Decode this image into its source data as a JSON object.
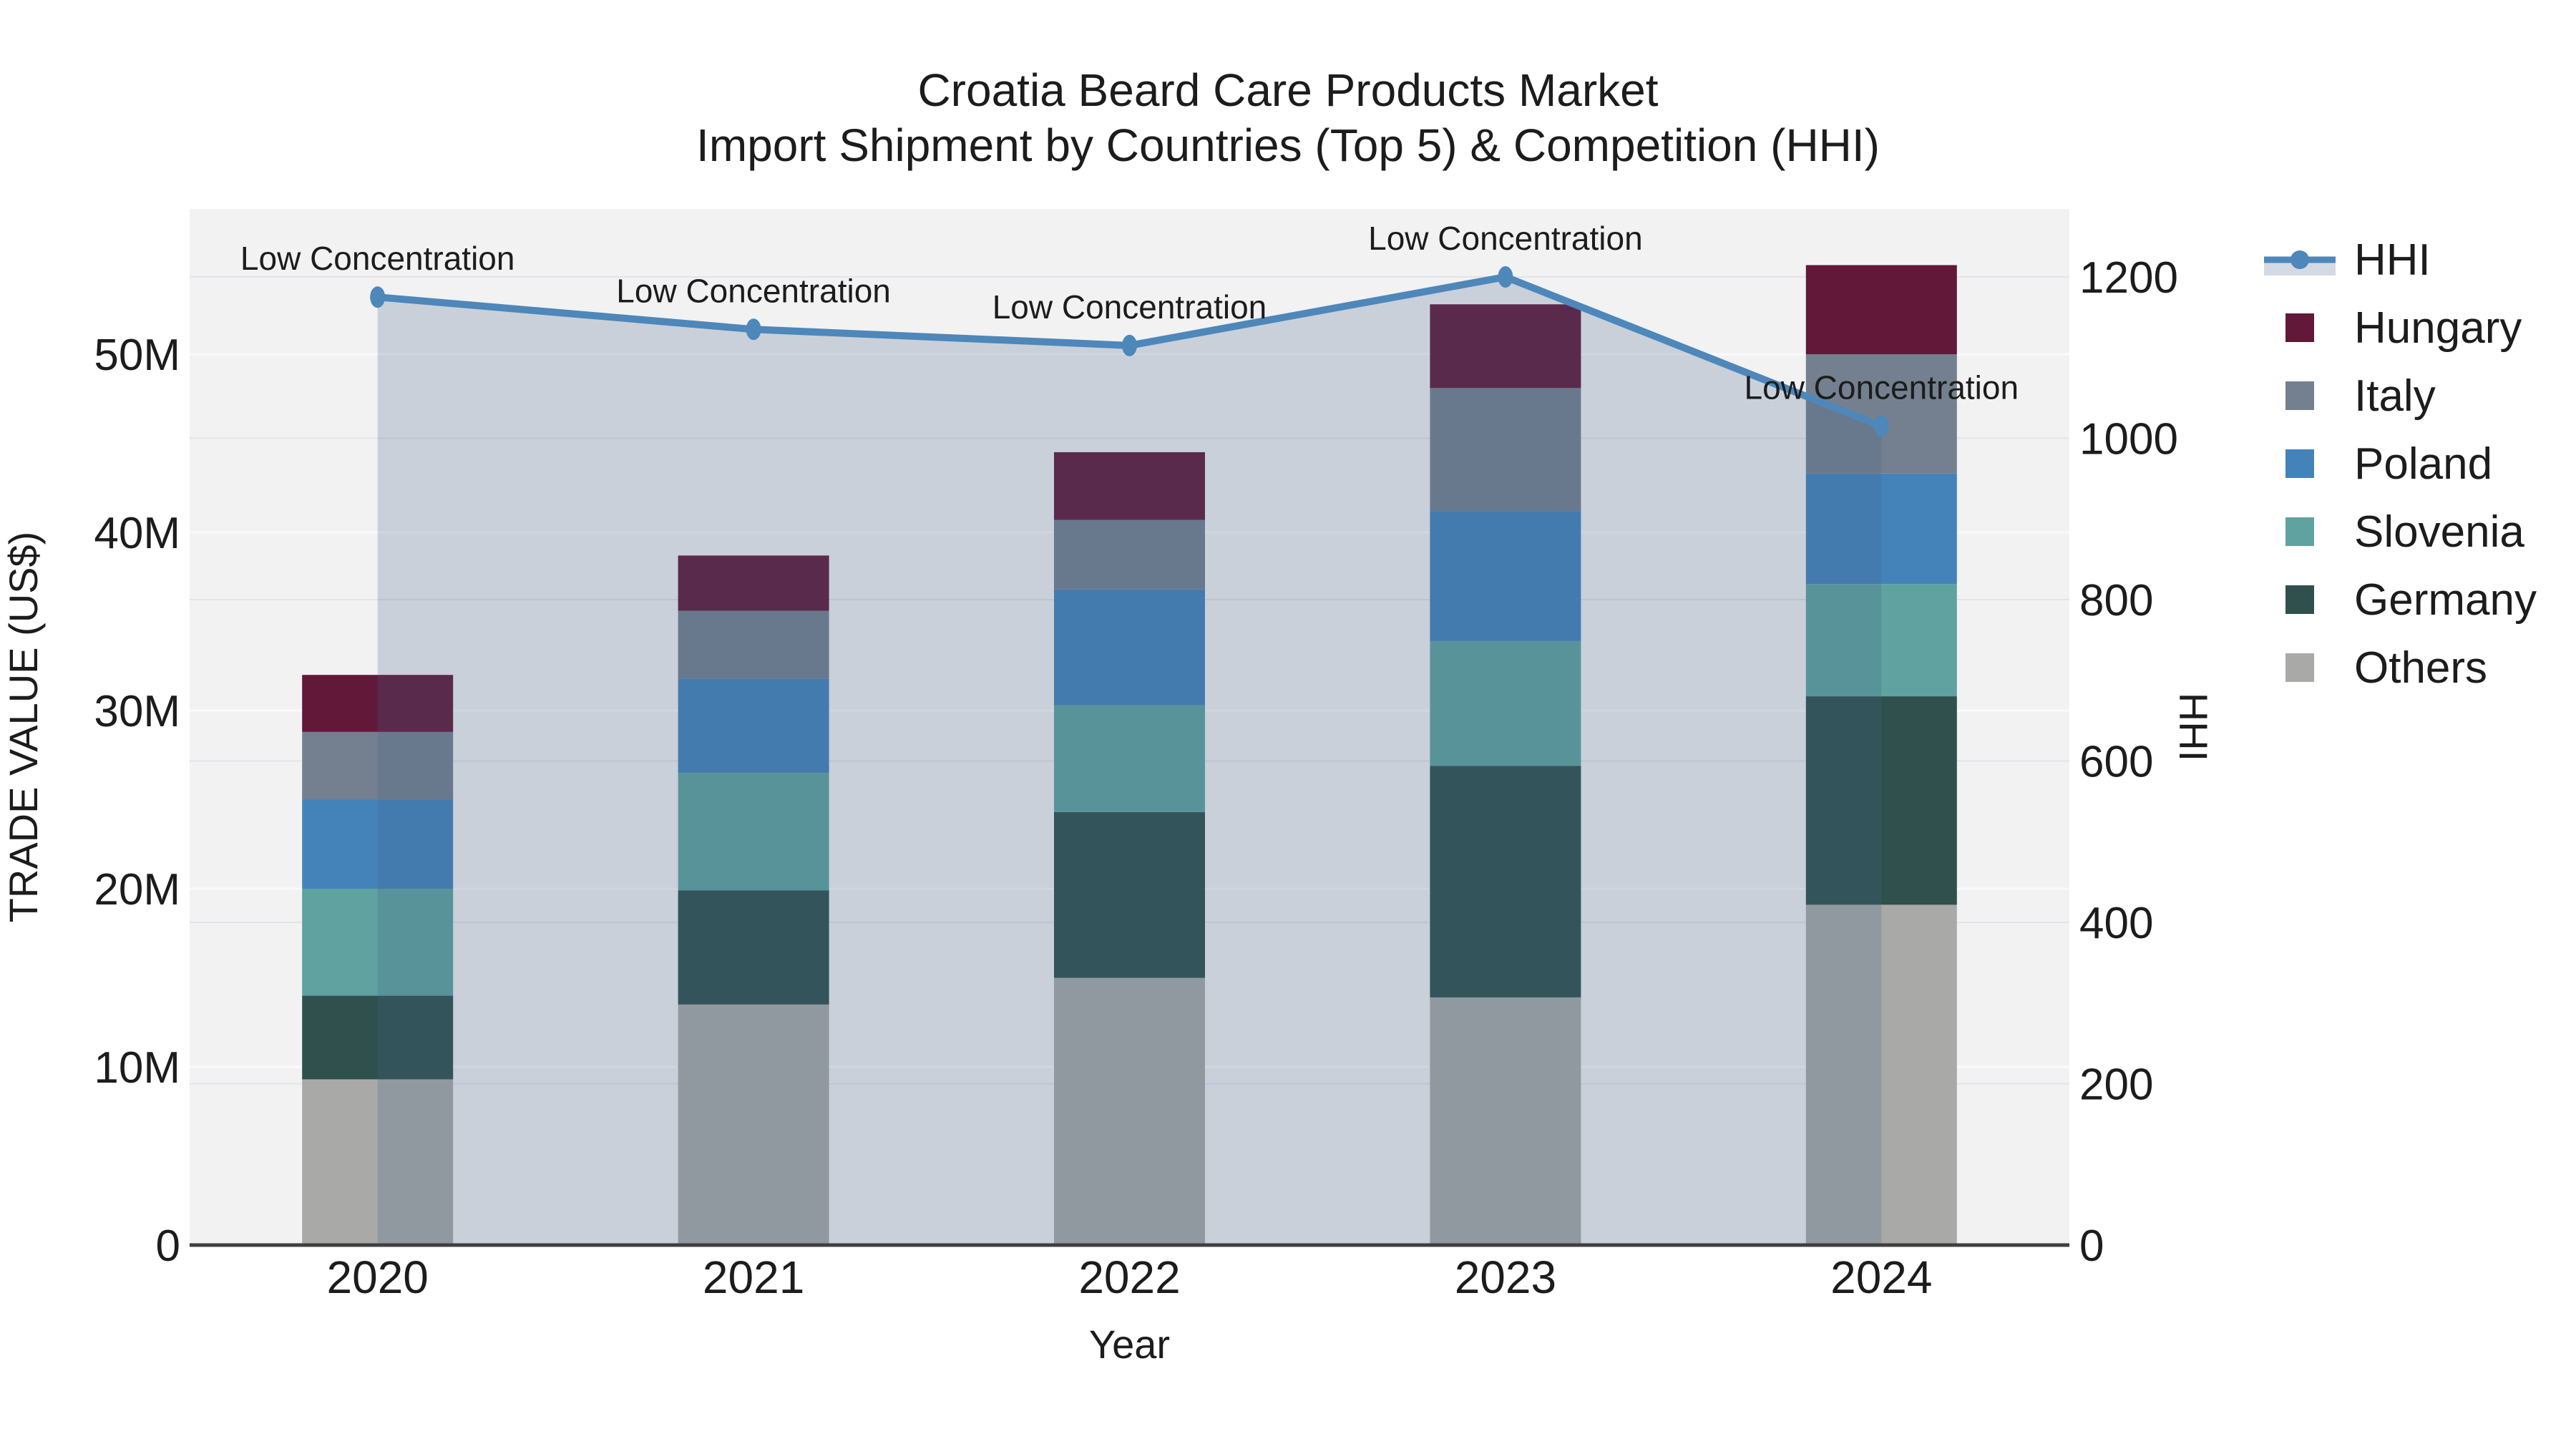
{
  "title": {
    "line1": "Croatia Beard Care Products Market",
    "line2": "Import Shipment by Countries (Top 5) & Competition (HHI)"
  },
  "colors": {
    "plot_background": "#f2f2f3",
    "grid_left": "#fafafc",
    "grid_right": "#e3e4e8",
    "axis_line": "#3f3f3f",
    "text": "#1c1c1c",
    "hhi_line": "#4e87b9",
    "hhi_area_fill": "rgba(70,100,140,0.24)",
    "hungary": "#611839",
    "italy": "#74808f",
    "poland": "#4483ba",
    "slovenia": "#5fa2a0",
    "germany": "#2f504d",
    "others": "#a9aaa8"
  },
  "legend": {
    "items": [
      {
        "label": "HHI",
        "type": "line",
        "color": "#4e87b9"
      },
      {
        "label": "Hungary",
        "type": "swatch",
        "color": "#611839"
      },
      {
        "label": "Italy",
        "type": "swatch",
        "color": "#74808f"
      },
      {
        "label": "Poland",
        "type": "swatch",
        "color": "#4483ba"
      },
      {
        "label": "Slovenia",
        "type": "swatch",
        "color": "#5fa2a0"
      },
      {
        "label": "Germany",
        "type": "swatch",
        "color": "#2f504d"
      },
      {
        "label": "Others",
        "type": "swatch",
        "color": "#a9aaa8"
      }
    ]
  },
  "chart_data": {
    "type": "combo",
    "subtype": "stacked-bar-with-line",
    "categories": [
      "2020",
      "2021",
      "2022",
      "2023",
      "2024"
    ],
    "x_axis": {
      "title": "Year"
    },
    "left_axis": {
      "title": "TRADE VALUE (US$)",
      "tick_labels": [
        "0",
        "10M",
        "20M",
        "30M",
        "40M",
        "50M"
      ],
      "tick_values_millions": [
        0,
        10,
        20,
        30,
        40,
        50
      ],
      "range_millions": [
        0,
        58.2
      ],
      "grid": true
    },
    "right_axis": {
      "title": "HHI",
      "tick_labels": [
        "0",
        "200",
        "400",
        "600",
        "800",
        "1000",
        "1200"
      ],
      "tick_values": [
        0,
        200,
        400,
        600,
        800,
        1000,
        1200
      ],
      "range": [
        0,
        1200
      ],
      "grid": true
    },
    "bar_unit": "M US$",
    "stack_order_bottom_to_top": [
      "Others",
      "Germany",
      "Slovenia",
      "Poland",
      "Italy",
      "Hungary"
    ],
    "series": [
      {
        "name": "Others",
        "type": "bar",
        "color": "#a9aaa8",
        "values": [
          9.3,
          13.5,
          15.0,
          13.9,
          19.1
        ]
      },
      {
        "name": "Germany",
        "type": "bar",
        "color": "#2f504d",
        "values": [
          4.7,
          6.4,
          9.3,
          13.0,
          11.7
        ]
      },
      {
        "name": "Slovenia",
        "type": "bar",
        "color": "#5fa2a0",
        "values": [
          6.0,
          6.6,
          6.0,
          7.0,
          6.3
        ]
      },
      {
        "name": "Poland",
        "type": "bar",
        "color": "#4483ba",
        "values": [
          5.0,
          5.3,
          6.5,
          7.3,
          6.2
        ]
      },
      {
        "name": "Italy",
        "type": "bar",
        "color": "#74808f",
        "values": [
          3.8,
          3.8,
          3.9,
          6.9,
          6.7
        ]
      },
      {
        "name": "Hungary",
        "type": "bar",
        "color": "#611839",
        "values": [
          3.2,
          3.1,
          3.8,
          4.7,
          5.0
        ]
      }
    ],
    "bar_totals_millions": [
      32.0,
      38.7,
      44.5,
      52.8,
      55.0
    ],
    "line_series": {
      "name": "HHI",
      "axis": "right",
      "color": "#4e87b9",
      "area_fill": "rgba(70,100,140,0.24)",
      "values": [
        1175,
        1135,
        1115,
        1200,
        1015
      ]
    },
    "annotations": [
      {
        "text": "Low Concentration",
        "category": "2020"
      },
      {
        "text": "Low Concentration",
        "category": "2021"
      },
      {
        "text": "Low Concentration",
        "category": "2022"
      },
      {
        "text": "Low Concentration",
        "category": "2023"
      },
      {
        "text": "Low Concentration",
        "category": "2024"
      }
    ],
    "legend_position": "right"
  }
}
